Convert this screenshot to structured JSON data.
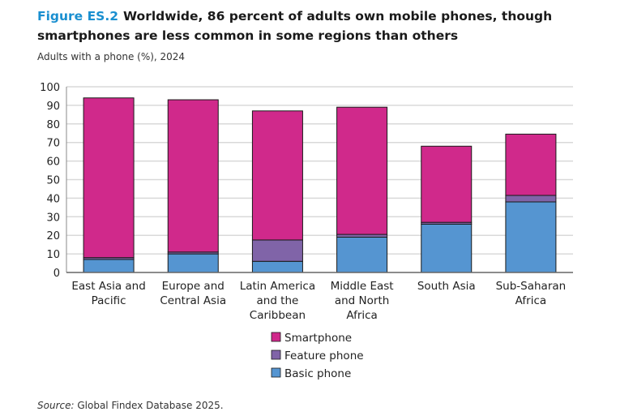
{
  "title": {
    "figure_label": "Figure ES.2",
    "text": "Worldwide, 86 percent of adults own mobile phones, though smartphones are less common in some regions than others"
  },
  "subtitle": "Adults with a phone (%), 2024",
  "source": {
    "label": "Source:",
    "text": "Global Findex Database 2025."
  },
  "chart_data": {
    "type": "bar",
    "stacked": true,
    "categories": [
      [
        "East Asia and",
        "Pacific"
      ],
      [
        "Europe and",
        "Central Asia"
      ],
      [
        "Latin America",
        "and the",
        "Caribbean"
      ],
      [
        "Middle East",
        "and North",
        "Africa"
      ],
      [
        "South Asia"
      ],
      [
        "Sub-Saharan",
        "Africa"
      ]
    ],
    "series": [
      {
        "name": "Basic phone",
        "color": "#5595d1",
        "values": [
          7,
          10,
          6,
          19,
          26,
          38
        ]
      },
      {
        "name": "Feature phone",
        "color": "#8064a8",
        "values": [
          1,
          1,
          11.5,
          1.5,
          1,
          3.5
        ]
      },
      {
        "name": "Smartphone",
        "color": "#d0298b",
        "values": [
          86,
          82,
          69.5,
          68.5,
          41,
          33
        ]
      }
    ],
    "ylim": [
      0,
      100
    ],
    "yticks": [
      0,
      10,
      20,
      30,
      40,
      50,
      60,
      70,
      80,
      90,
      100
    ],
    "grid": true,
    "legend": "bottom"
  }
}
